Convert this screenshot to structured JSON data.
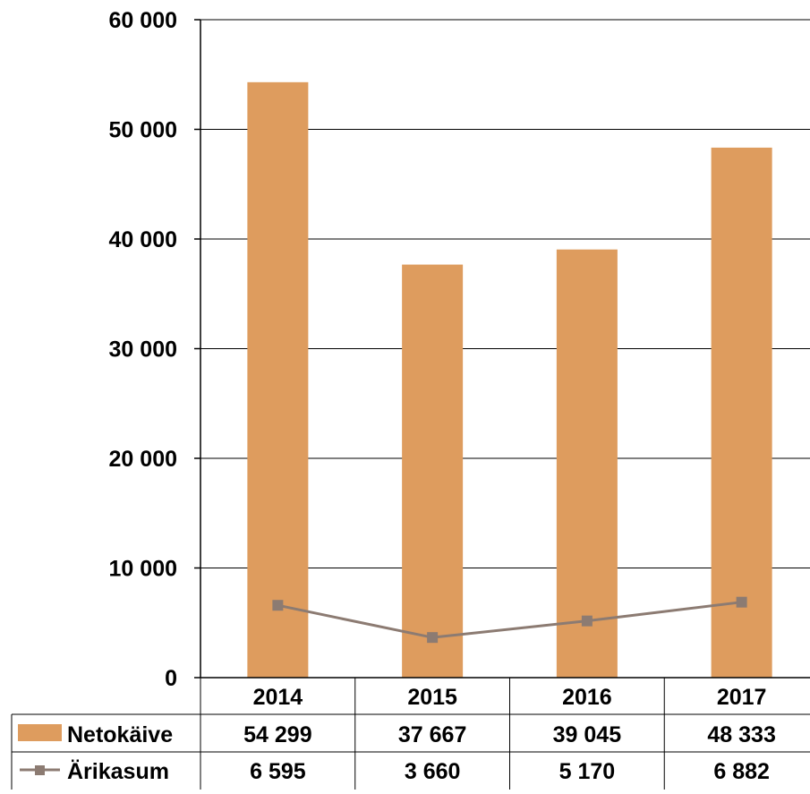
{
  "chart_data": {
    "type": "bar",
    "title": "",
    "xlabel": "",
    "ylabel": "",
    "categories": [
      "2014",
      "2015",
      "2016",
      "2017"
    ],
    "ylim": [
      0,
      60000
    ],
    "yticks": [
      0,
      10000,
      20000,
      30000,
      40000,
      50000,
      60000
    ],
    "ytick_labels": [
      "0",
      "10 000",
      "20 000",
      "30 000",
      "40 000",
      "50 000",
      "60 000"
    ],
    "grid": true,
    "legend": "data-table",
    "series": [
      {
        "name": "Netokäive",
        "type": "bar",
        "color": "#DE9C5E",
        "values": [
          54299,
          37667,
          39045,
          48333
        ],
        "value_labels": [
          "54 299",
          "37 667",
          "39 045",
          "48 333"
        ]
      },
      {
        "name": "Ärikasum",
        "type": "line",
        "color": "#8C7B72",
        "marker": "square",
        "values": [
          6595,
          3660,
          5170,
          6882
        ],
        "value_labels": [
          "6 595",
          "3 660",
          "5 170",
          "6 882"
        ]
      }
    ]
  }
}
